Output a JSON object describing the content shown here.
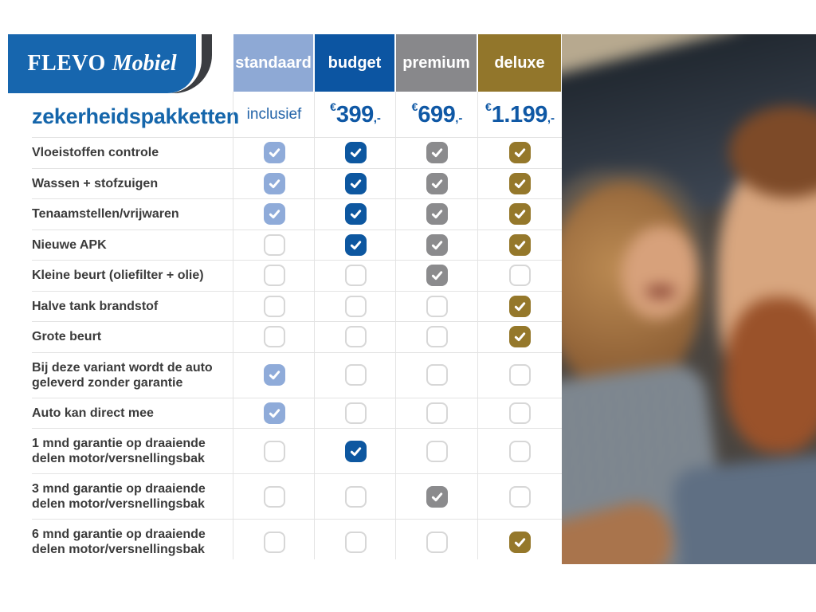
{
  "brand": {
    "logo_primary": "FLEVO",
    "logo_secondary": "Mobiel",
    "logo_bg_color": "#1766ae",
    "logo_swoosh_color": "#3b3d41"
  },
  "page_title": "zekerheidspakketten",
  "currency_symbol": "€",
  "price_suffix": ",-",
  "packages": [
    {
      "label": "standaard",
      "price_text": "inclusief",
      "color": "#8ea9d5",
      "check_color": "#8fabd9"
    },
    {
      "label": "budget",
      "amount": "399",
      "color": "#0c55a2",
      "check_color": "#0d57a0"
    },
    {
      "label": "premium",
      "amount": "699",
      "color": "#88888b",
      "check_color": "#8b8b8d"
    },
    {
      "label": "deluxe",
      "amount": "1.199",
      "color": "#92762b",
      "check_color": "#95782b"
    }
  ],
  "table": {
    "rows": [
      {
        "label": "Vloeistoffen controle",
        "checks": [
          true,
          true,
          true,
          true
        ]
      },
      {
        "label": "Wassen + stofzuigen",
        "checks": [
          true,
          true,
          true,
          true
        ]
      },
      {
        "label": "Tenaamstellen/vrijwaren",
        "checks": [
          true,
          true,
          true,
          true
        ]
      },
      {
        "label": "Nieuwe APK",
        "checks": [
          false,
          true,
          true,
          true
        ]
      },
      {
        "label": "Kleine beurt (oliefilter + olie)",
        "checks": [
          false,
          false,
          true,
          false
        ]
      },
      {
        "label": "Halve tank brandstof",
        "checks": [
          false,
          false,
          false,
          true
        ]
      },
      {
        "label": "Grote beurt",
        "checks": [
          false,
          false,
          false,
          true
        ]
      },
      {
        "label": "Bij deze variant wordt de auto\ngeleverd zonder garantie",
        "checks": [
          true,
          false,
          false,
          false
        ]
      },
      {
        "label": "Auto kan direct mee",
        "checks": [
          true,
          false,
          false,
          false
        ]
      },
      {
        "label": "1 mnd garantie op draaiende\ndelen motor/versnellingsbak",
        "checks": [
          false,
          true,
          false,
          false
        ]
      },
      {
        "label": "3 mnd garantie op draaiende\ndelen motor/versnellingsbak",
        "checks": [
          false,
          false,
          true,
          false
        ]
      },
      {
        "label": "6 mnd garantie op draaiende\ndelen motor/versnellingsbak",
        "checks": [
          false,
          false,
          false,
          true
        ]
      }
    ]
  },
  "photo": {
    "alt": "Smiling woman with curly hair and bearded man sitting together in a car"
  },
  "accent_text_blue": "#0f58a5"
}
